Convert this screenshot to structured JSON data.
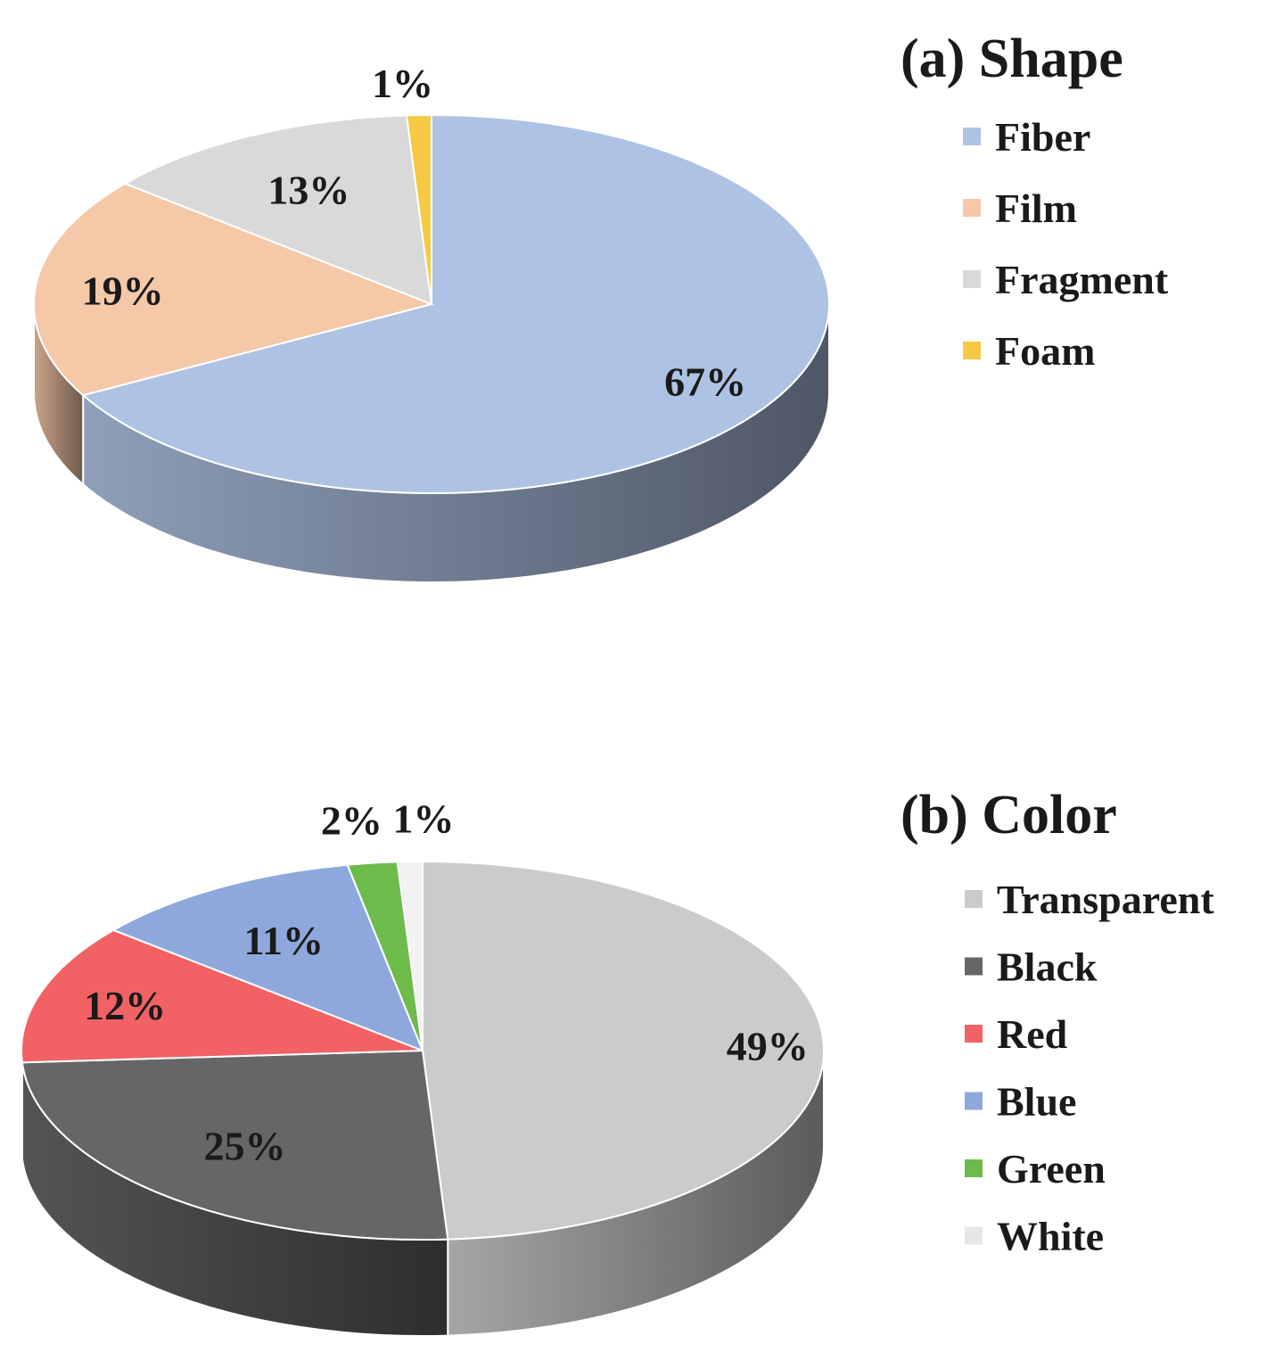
{
  "chart_data": [
    {
      "type": "pie",
      "title": "(a) Shape",
      "categories": [
        "Fiber",
        "Film",
        "Fragment",
        "Foam"
      ],
      "values": [
        67,
        19,
        13,
        1
      ],
      "labels": [
        "67%",
        "19%",
        "13%",
        "1%"
      ],
      "colors": [
        "#aec2e3",
        "#f5c8a8",
        "#d9d9d9",
        "#f6c944"
      ],
      "legend_position": "right"
    },
    {
      "type": "pie",
      "title": "(b) Color",
      "categories": [
        "Transparent",
        "Black",
        "Red",
        "Blue",
        "Green",
        "White"
      ],
      "values": [
        49,
        25,
        12,
        11,
        2,
        1
      ],
      "labels": [
        "49%",
        "25%",
        "12%",
        "11%",
        "2%",
        "1%"
      ],
      "colors": [
        "#cbcbcb",
        "#666666",
        "#f26265",
        "#8ea8dc",
        "#6dbb4a",
        "#f2f2f2"
      ],
      "legend_position": "right"
    }
  ]
}
